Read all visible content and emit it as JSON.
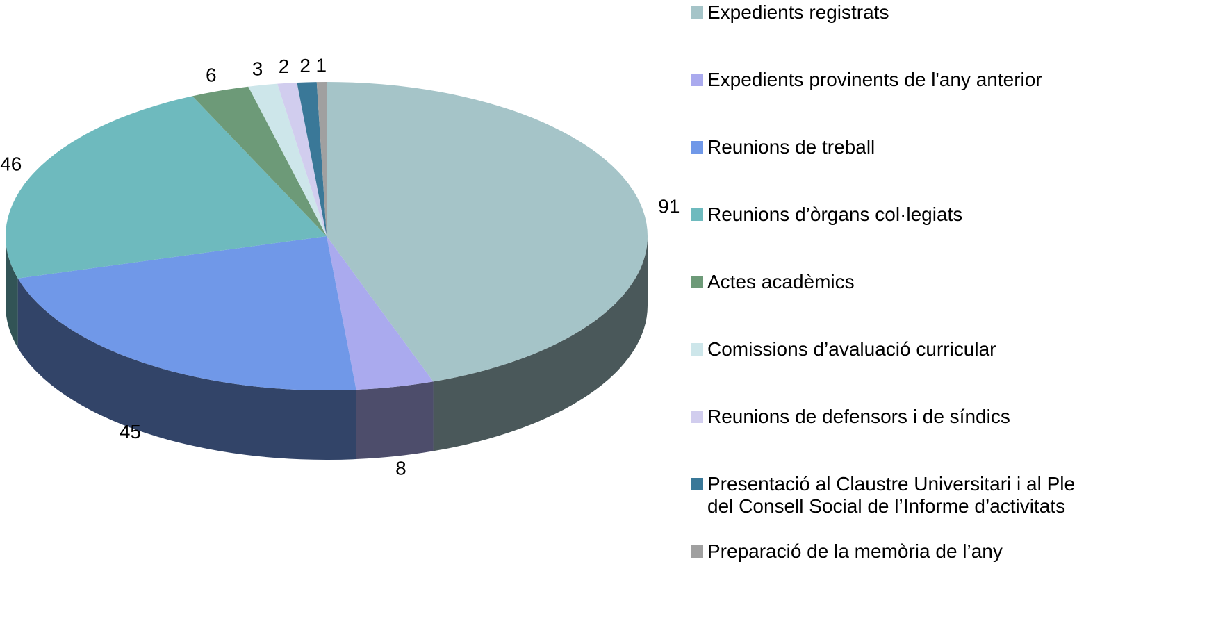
{
  "chart_data": {
    "type": "pie3d",
    "categories": [
      "Expedients registrats",
      "Expedients provinents de l'any anterior",
      "Reunions de treball",
      "Reunions d’òrgans col·legiats",
      "Actes acadèmics",
      "Comissions d’avaluació curricular",
      "Reunions de defensors i de síndics",
      "Presentació al Claustre Universitari i al Ple del Consell Social de l’Informe d’activitats",
      "Preparació de la memòria de l’any"
    ],
    "values": [
      91,
      8,
      45,
      46,
      6,
      3,
      2,
      2,
      1
    ],
    "colors": [
      "#a5c4c8",
      "#aaaaee",
      "#7098e8",
      "#6ebabe",
      "#6d9a78",
      "#cde6ea",
      "#d1cdee",
      "#3a7898",
      "#a0a0a0"
    ],
    "legend": "right"
  }
}
